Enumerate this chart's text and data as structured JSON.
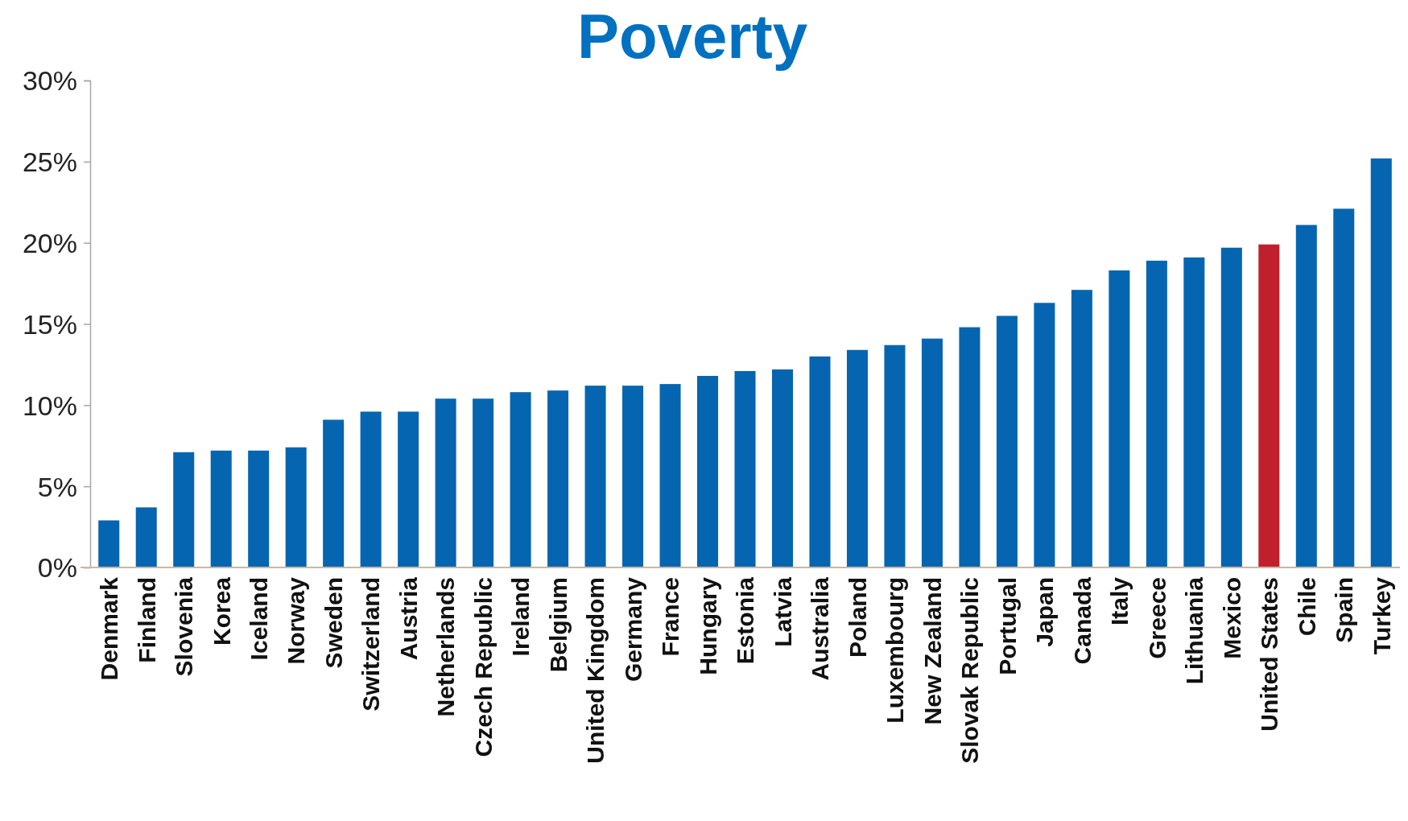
{
  "chart_data": {
    "type": "bar",
    "title": "Poverty",
    "categories": [
      "Denmark",
      "Finland",
      "Slovenia",
      "Korea",
      "Iceland",
      "Norway",
      "Sweden",
      "Switzerland",
      "Austria",
      "Netherlands",
      "Czech Republic",
      "Ireland",
      "Belgium",
      "United Kingdom",
      "Germany",
      "France",
      "Hungary",
      "Estonia",
      "Latvia",
      "Australia",
      "Poland",
      "Luxembourg",
      "New Zealand",
      "Slovak Republic",
      "Portugal",
      "Japan",
      "Canada",
      "Italy",
      "Greece",
      "Lithuania",
      "Mexico",
      "United States",
      "Chile",
      "Spain",
      "Turkey"
    ],
    "values": [
      2.9,
      3.7,
      7.1,
      7.2,
      7.2,
      7.4,
      9.1,
      9.6,
      9.6,
      10.4,
      10.4,
      10.8,
      10.9,
      11.2,
      11.2,
      11.3,
      11.8,
      12.1,
      12.2,
      13.0,
      13.4,
      13.7,
      14.1,
      14.8,
      15.5,
      16.3,
      17.1,
      18.3,
      18.9,
      19.1,
      19.7,
      19.9,
      21.1,
      22.1,
      25.2
    ],
    "colors": [
      "#0565b0",
      "#0565b0",
      "#0565b0",
      "#0565b0",
      "#0565b0",
      "#0565b0",
      "#0565b0",
      "#0565b0",
      "#0565b0",
      "#0565b0",
      "#0565b0",
      "#0565b0",
      "#0565b0",
      "#0565b0",
      "#0565b0",
      "#0565b0",
      "#0565b0",
      "#0565b0",
      "#0565b0",
      "#0565b0",
      "#0565b0",
      "#0565b0",
      "#0565b0",
      "#0565b0",
      "#0565b0",
      "#0565b0",
      "#0565b0",
      "#0565b0",
      "#0565b0",
      "#0565b0",
      "#0565b0",
      "#c0202e",
      "#0565b0",
      "#0565b0",
      "#0565b0"
    ],
    "ylim": [
      0,
      30
    ],
    "yticks": [
      {
        "value": 0,
        "label": "0%"
      },
      {
        "value": 5,
        "label": "5%"
      },
      {
        "value": 10,
        "label": "10%"
      },
      {
        "value": 15,
        "label": "15%"
      },
      {
        "value": 20,
        "label": "20%"
      },
      {
        "value": 25,
        "label": "25%"
      },
      {
        "value": 30,
        "label": "30%"
      }
    ],
    "grid": false,
    "legend": false
  }
}
